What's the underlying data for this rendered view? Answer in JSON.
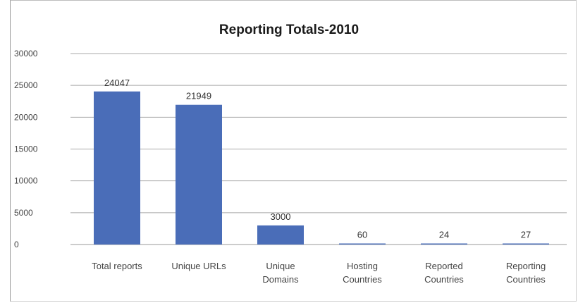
{
  "chart_data": {
    "type": "bar",
    "title": "Reporting Totals-2010",
    "categories": [
      [
        "Total reports"
      ],
      [
        "Unique URLs"
      ],
      [
        "Unique",
        "Domains"
      ],
      [
        "Hosting",
        "Countries"
      ],
      [
        "Reported",
        "Countries"
      ],
      [
        "Reporting",
        "Countries"
      ]
    ],
    "values": [
      24047,
      21949,
      3000,
      60,
      24,
      27
    ],
    "data_labels": [
      "24047",
      "21949",
      "3000",
      "60",
      "24",
      "27"
    ],
    "y_ticks": [
      "0",
      "5000",
      "10000",
      "15000",
      "20000",
      "25000",
      "30000"
    ],
    "ylim": [
      0,
      30000
    ],
    "grid": true,
    "legend": "none",
    "bar_color": "#4a6db8",
    "xlabel": "",
    "ylabel": ""
  }
}
